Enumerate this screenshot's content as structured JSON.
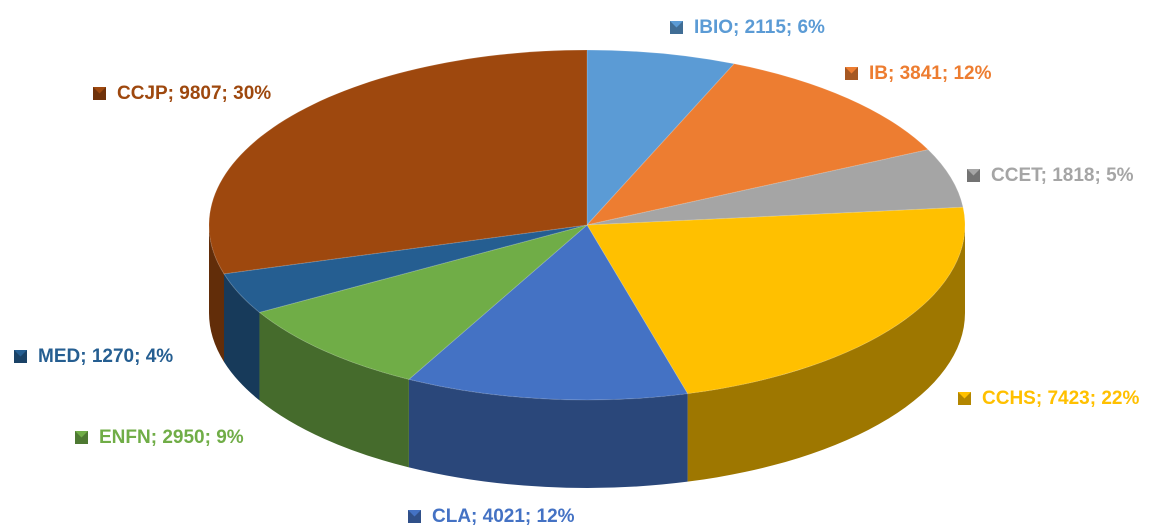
{
  "chart_data": {
    "type": "pie",
    "values": [
      2115,
      3841,
      1818,
      7423,
      4021,
      2950,
      1270,
      9807
    ],
    "value_labels": [
      "IBIO; 2115; 6%",
      "IB; 3841; 12%",
      "CCET; 1818; 5%",
      "CCHS; 7423; 22%",
      "CLA; 4021; 12%",
      "ENFN; 2950; 9%",
      "MED; 1270; 4%",
      "CCJP; 9807; 30%"
    ],
    "colors": [
      "#5b9bd5",
      "#ed7d31",
      "#a5a5a5",
      "#ffc000",
      "#4472c4",
      "#70ad47",
      "#255e91",
      "#9e480e"
    ]
  }
}
